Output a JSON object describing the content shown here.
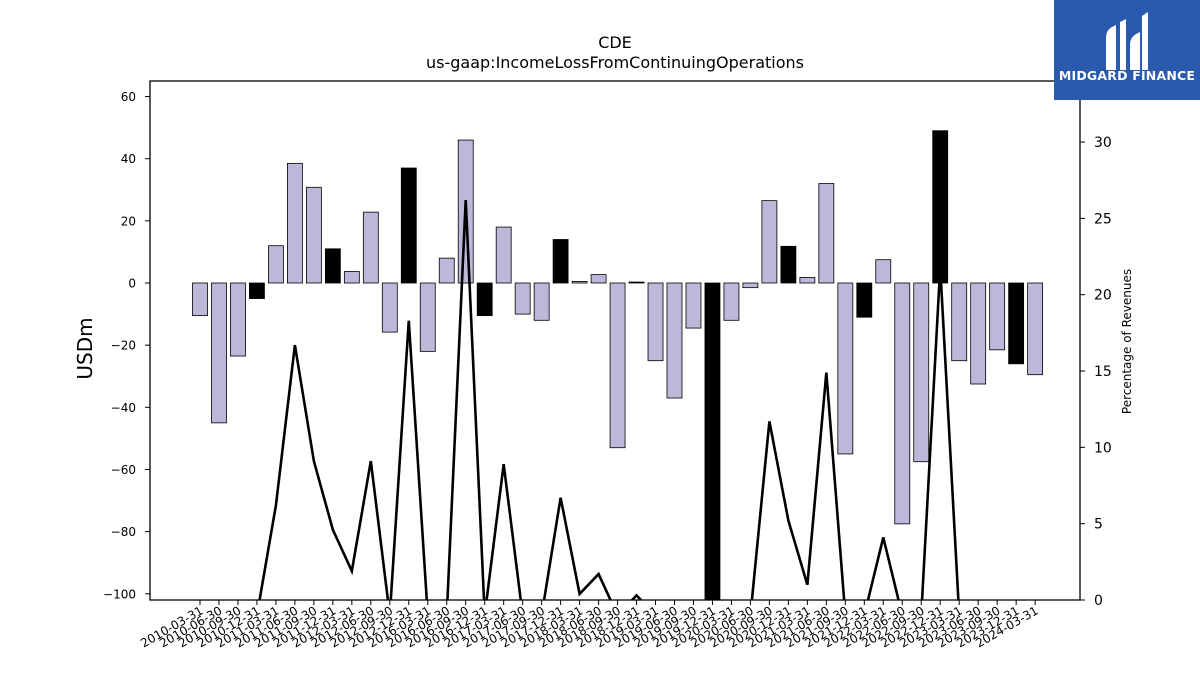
{
  "header": {
    "title": "CDE",
    "subtitle": "us-gaap:IncomeLossFromContinuingOperations"
  },
  "logo": {
    "text": "MIDGARD FINANCE",
    "bg_color": "#2a5aad"
  },
  "chart_data": {
    "type": "bar",
    "ylabel": "USDm",
    "y2label": "Percentage of Revenues",
    "ylim": [
      -102,
      65
    ],
    "y2lim": [
      0,
      34
    ],
    "yticks": [
      -100,
      -80,
      -60,
      -40,
      -20,
      0,
      20,
      40,
      60
    ],
    "y2ticks": [
      0,
      5,
      10,
      15,
      20,
      25,
      30
    ],
    "categories": [
      "2010-03-31",
      "2010-06-30",
      "2010-09-30",
      "2010-12-31",
      "2011-03-31",
      "2011-06-30",
      "2011-09-30",
      "2011-12-31",
      "2012-03-31",
      "2012-06-30",
      "2012-09-30",
      "2012-12-31",
      "2016-03-31",
      "2016-06-30",
      "2016-09-30",
      "2016-12-31",
      "2017-03-31",
      "2017-06-30",
      "2017-09-30",
      "2017-12-31",
      "2018-03-31",
      "2018-06-30",
      "2018-09-30",
      "2018-12-31",
      "2019-03-31",
      "2019-06-30",
      "2019-09-30",
      "2019-12-31",
      "2020-03-31",
      "2020-06-30",
      "2020-09-30",
      "2020-12-31",
      "2021-03-31",
      "2021-06-30",
      "2021-09-30",
      "2021-12-31",
      "2022-03-31",
      "2022-06-30",
      "2022-09-30",
      "2022-12-31",
      "2023-03-31",
      "2023-06-30",
      "2023-09-30",
      "2023-12-31",
      "2024-03-31"
    ],
    "series": [
      {
        "kind": "bar",
        "axis": "left",
        "values": [
          -10.5,
          -45,
          -23.5,
          -5,
          12,
          38.5,
          30.8,
          11,
          3.7,
          22.8,
          -15.8,
          37,
          -22,
          8,
          46,
          -10.5,
          18,
          -10,
          -12,
          14,
          0.5,
          2.7,
          -53,
          0.3,
          -25,
          -37,
          -14.5,
          -105,
          -12,
          -1.5,
          26.5,
          11.8,
          1.8,
          32,
          -55,
          -11,
          7.5,
          -77.5,
          -57.5,
          49,
          -25,
          -32.5,
          -21.5,
          -26,
          -29.5
        ],
        "highlight": [
          false,
          false,
          false,
          true,
          false,
          false,
          false,
          true,
          false,
          false,
          false,
          true,
          false,
          false,
          false,
          true,
          false,
          false,
          false,
          true,
          false,
          false,
          false,
          true,
          false,
          false,
          false,
          true,
          false,
          false,
          false,
          true,
          false,
          false,
          false,
          true,
          false,
          false,
          false,
          true,
          false,
          false,
          false,
          true,
          false
        ],
        "fill_color": "#bcb8da",
        "highlight_color": "#000000"
      },
      {
        "kind": "line",
        "axis": "right",
        "color": "#000000",
        "values": [
          -1,
          -1,
          -1,
          -1,
          6.2,
          16.7,
          9.1,
          4.6,
          1.9,
          9.1,
          -1,
          18.3,
          -1,
          -1,
          26.2,
          -1,
          8.9,
          -1,
          -1,
          6.7,
          0.4,
          1.7,
          -1,
          0.3,
          -1,
          -1,
          -1,
          -1,
          -1,
          -1,
          11.7,
          5.2,
          1.0,
          14.9,
          -1,
          -1,
          4.1,
          -1,
          -1,
          21.8,
          -1,
          -1,
          -1,
          -1,
          -1
        ]
      }
    ]
  }
}
